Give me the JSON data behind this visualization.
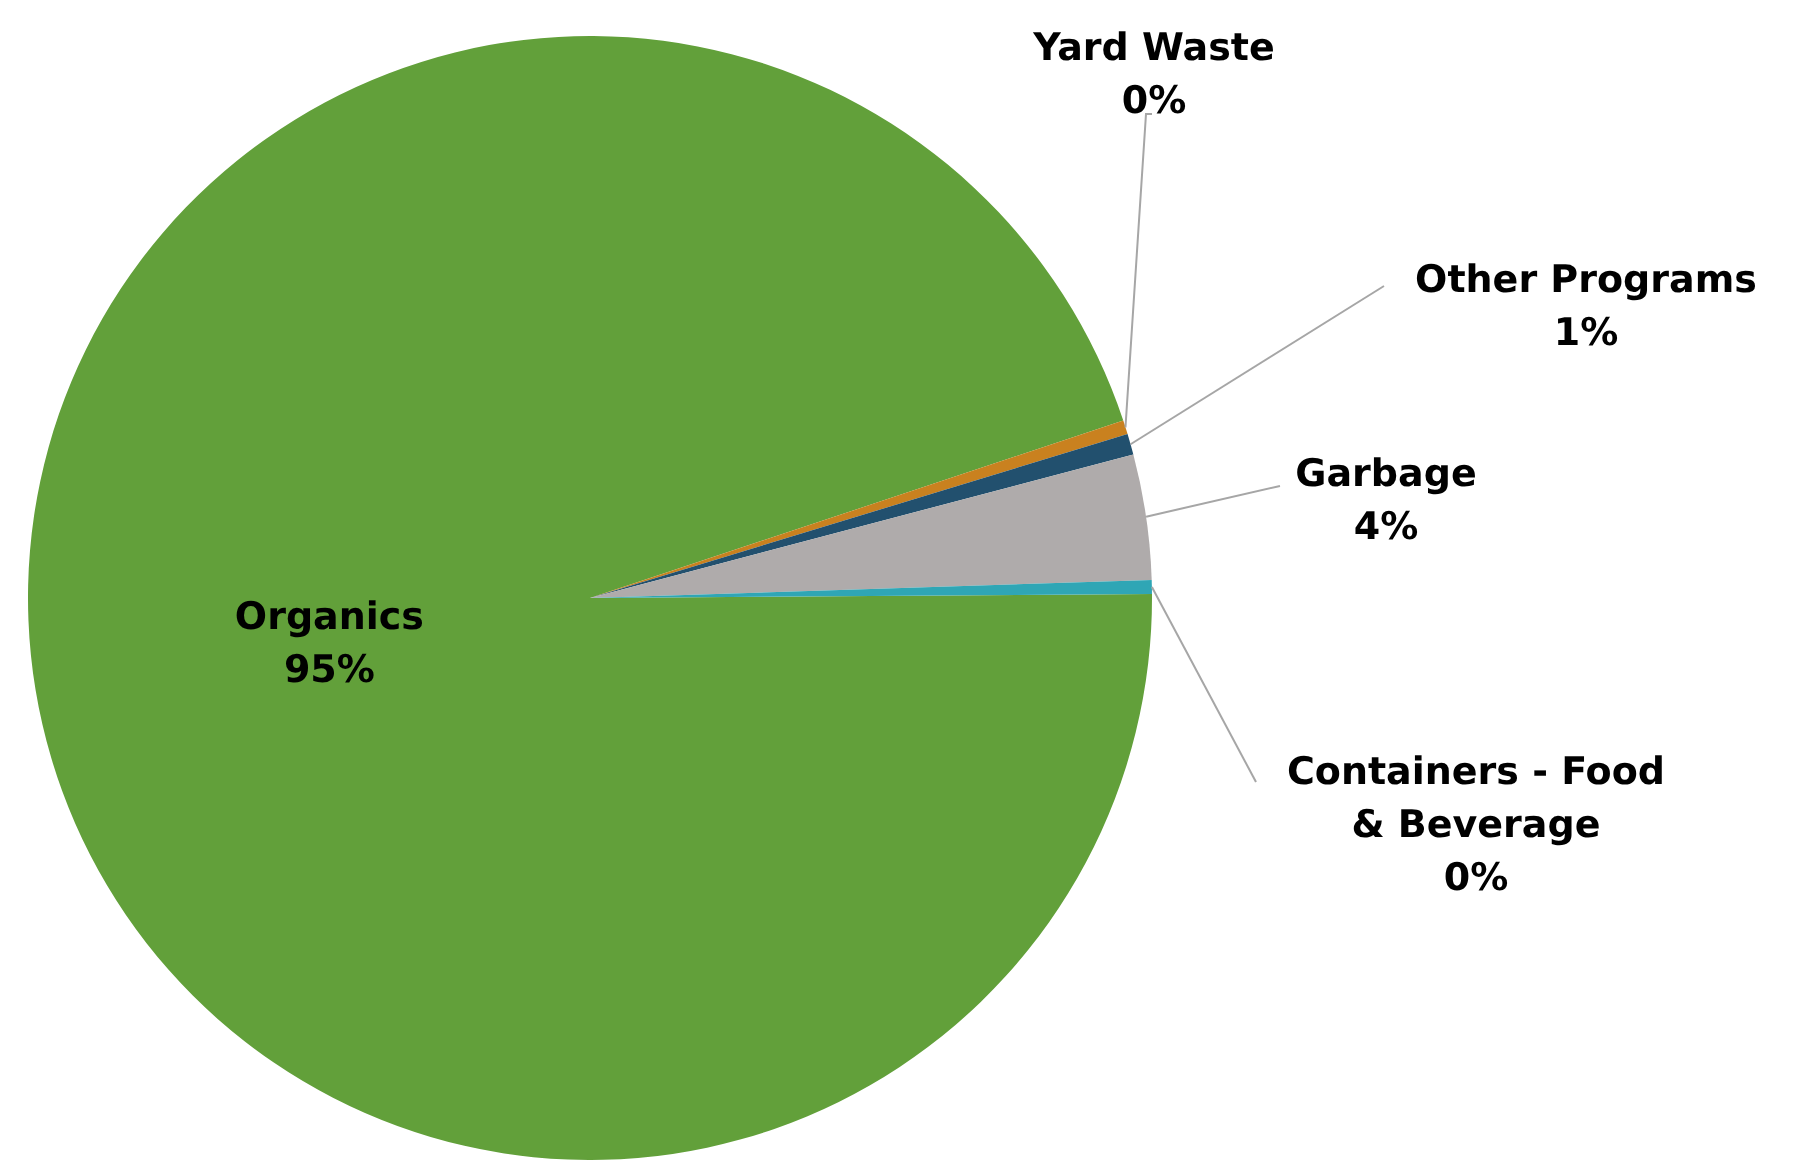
{
  "chart_data": {
    "type": "pie",
    "categories": [
      "Organics",
      "Yard Waste",
      "Other Programs",
      "Garbage",
      "Containers - Food & Beverage"
    ],
    "values": [
      95.0,
      0.4,
      0.6,
      3.6,
      0.4
    ],
    "colors": [
      "#62a03a",
      "#c9811f",
      "#22506e",
      "#afabab",
      "#2fa6b5"
    ],
    "value_labels": [
      "95%",
      "0%",
      "1%",
      "4%",
      "0%"
    ]
  }
}
